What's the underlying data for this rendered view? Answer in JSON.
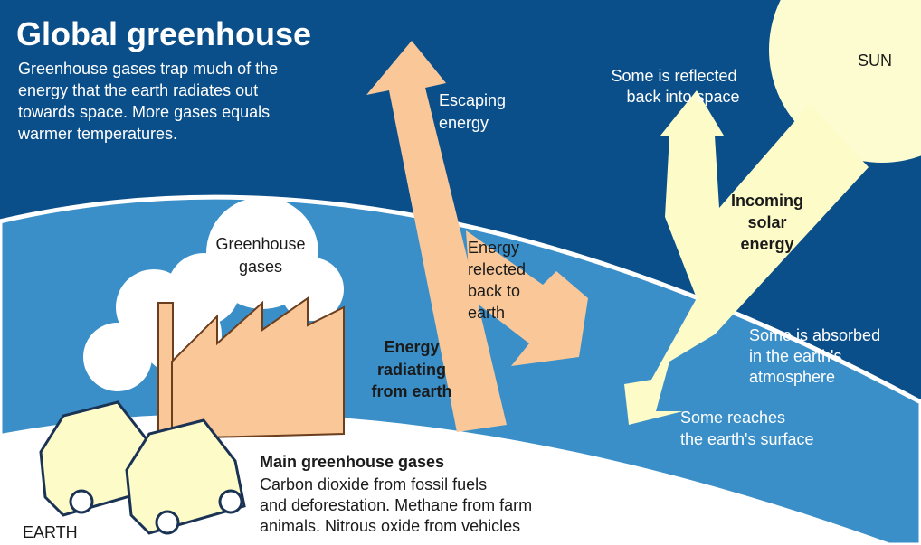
{
  "title": "Global greenhouse",
  "intro": [
    "Greenhouse gases trap much of the",
    "energy that the earth radiates out",
    "towards space. More gases equals",
    "warmer temperatures."
  ],
  "sun": "SUN",
  "escaping": [
    "Escaping",
    "energy"
  ],
  "reflected_space": [
    "Some is reflected",
    "back into space"
  ],
  "incoming": [
    "Incoming",
    "solar",
    "energy"
  ],
  "reflected_earth": [
    "Energy",
    "relected",
    "back to",
    "earth"
  ],
  "cloud": [
    "Greenhouse",
    "gases"
  ],
  "radiating": [
    "Energy",
    "radiating",
    "from earth"
  ],
  "absorbed": [
    "Some is absorbed",
    "in the earth's",
    "atmosphere"
  ],
  "reaches": [
    "Some reaches",
    "the earth's surface"
  ],
  "gases": {
    "heading": "Main greenhouse gases",
    "lines": [
      "Carbon dioxide from fossil fuels",
      "and deforestation. Methane from farm",
      "animals. Nitrous oxide from vehicles"
    ]
  },
  "earth": "EARTH"
}
